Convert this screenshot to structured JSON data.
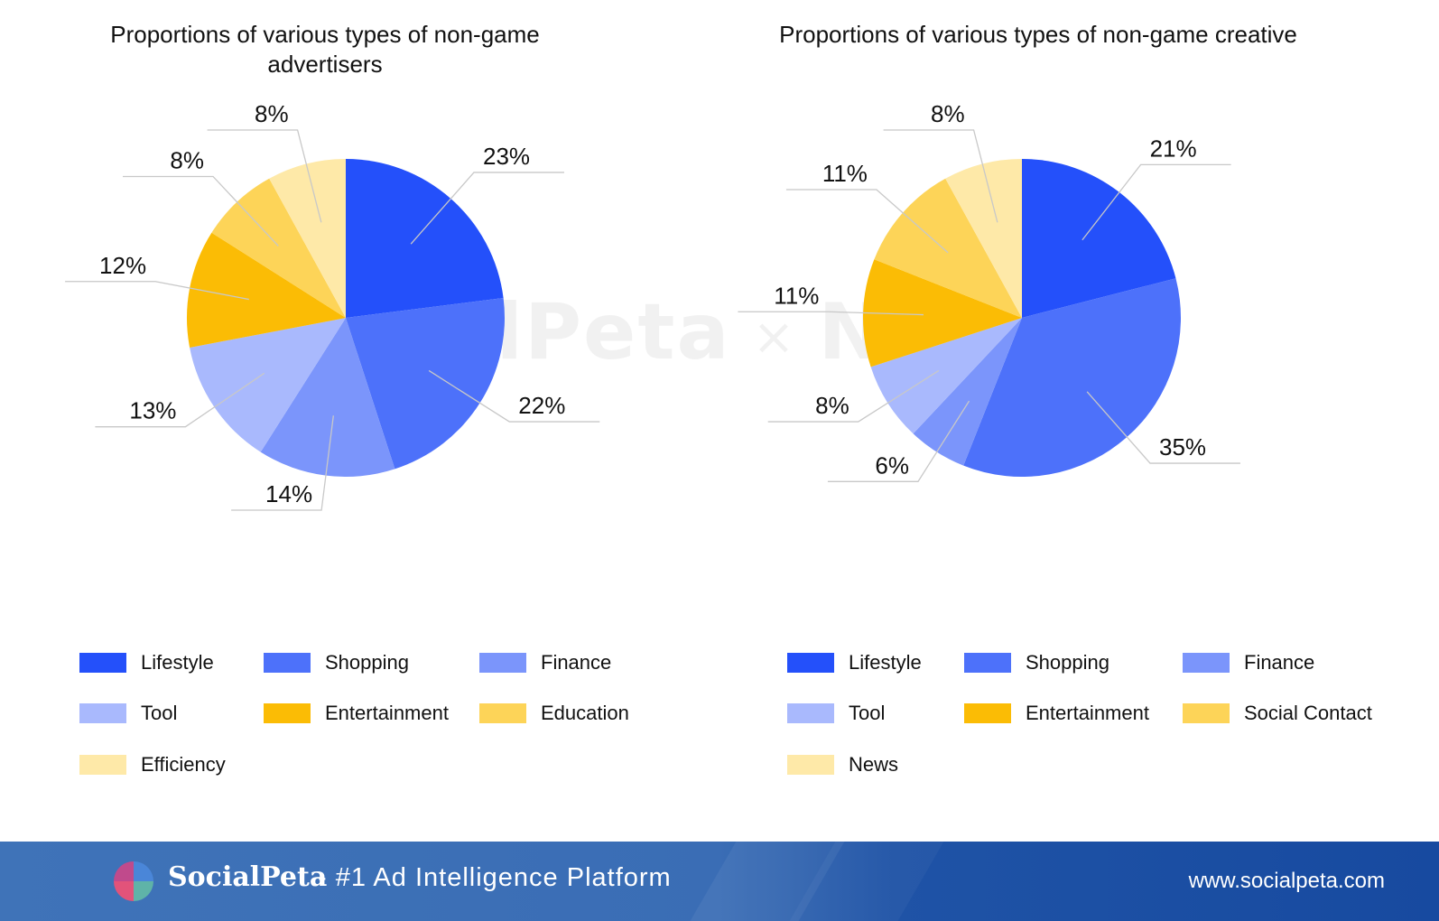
{
  "chart_data": [
    {
      "type": "pie",
      "title": "Proportions of various types of non-game advertisers",
      "labels": [
        "Lifestyle",
        "Shopping",
        "Finance",
        "Tool",
        "Entertainment",
        "Education",
        "Efficiency"
      ],
      "values": [
        23,
        22,
        14,
        13,
        12,
        8,
        8
      ],
      "value_labels": [
        "23%",
        "22%",
        "14%",
        "13%",
        "12%",
        "8%",
        "8%"
      ],
      "colors": [
        "#2450fa",
        "#4d71fa",
        "#7b95fb",
        "#a9b9fd",
        "#fbbc05",
        "#fdd458",
        "#fee9a8"
      ],
      "legend_position": "bottom"
    },
    {
      "type": "pie",
      "title": "Proportions of various types of non-game creative",
      "labels": [
        "Lifestyle",
        "Shopping",
        "Finance",
        "Tool",
        "Entertainment",
        "Social Contact",
        "News"
      ],
      "values": [
        21,
        35,
        6,
        8,
        11,
        11,
        8
      ],
      "value_labels": [
        "21%",
        "35%",
        "6%",
        "8%",
        "11%",
        "11%",
        "8%"
      ],
      "colors": [
        "#2450fa",
        "#4d71fa",
        "#7b95fb",
        "#a9b9fd",
        "#fbbc05",
        "#fdd458",
        "#fee9a8"
      ],
      "legend_position": "bottom"
    }
  ],
  "watermark": {
    "brand": "SocialPeta",
    "separator": "×",
    "partner": "Nativex"
  },
  "footer": {
    "brand": "SocialPeta",
    "tagline": "- #1 Ad Intelligence Platform",
    "url": "www.socialpeta.com",
    "background": "#2f61ad"
  }
}
